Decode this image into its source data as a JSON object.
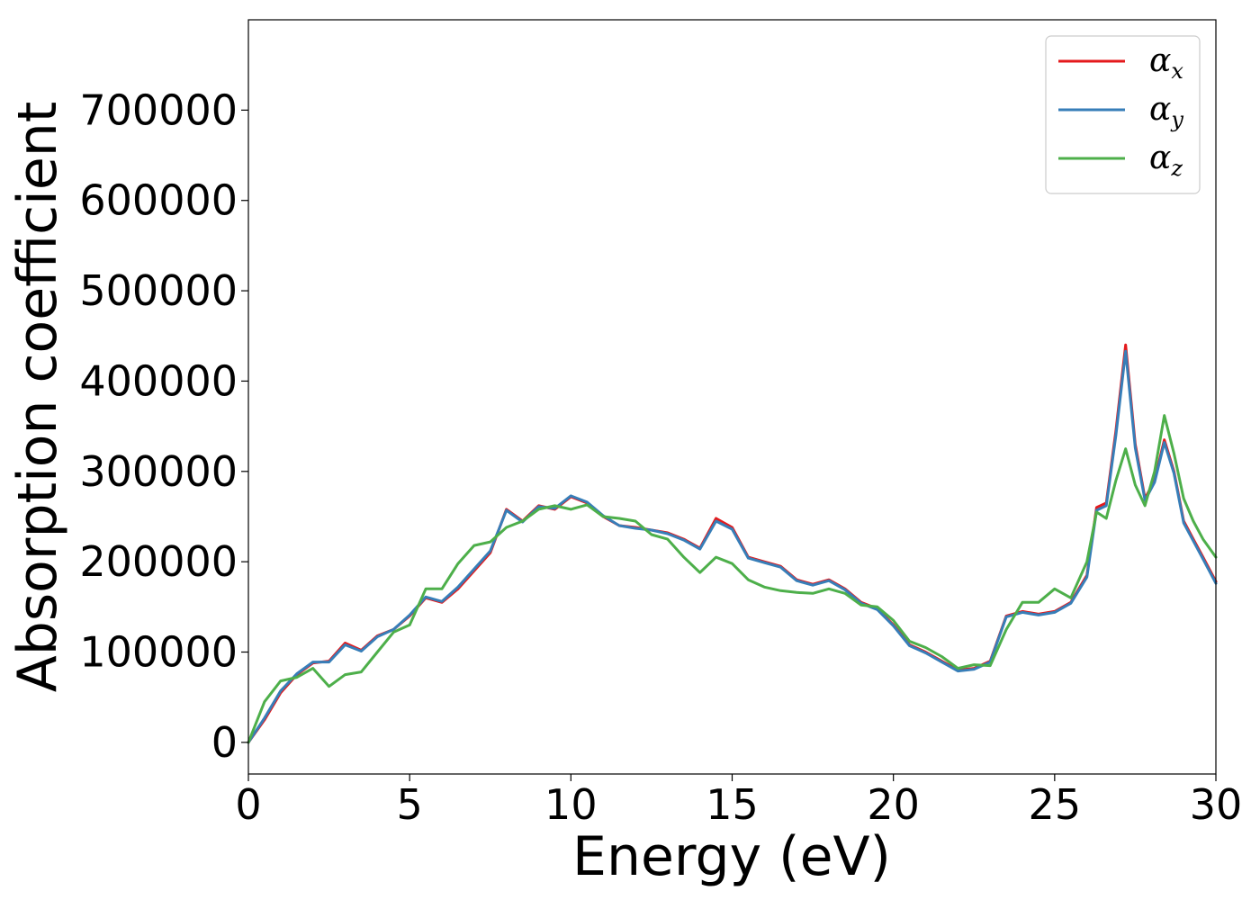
{
  "chart_data": {
    "type": "line",
    "title": "",
    "xlabel": "Energy (eV)",
    "ylabel": "Absorption coefficient",
    "xlim": [
      0,
      30
    ],
    "ylim": [
      -35000,
      800000
    ],
    "xticks": [
      0,
      5,
      10,
      15,
      20,
      25,
      30
    ],
    "xtick_labels": [
      "0",
      "5",
      "10",
      "15",
      "20",
      "25",
      "30"
    ],
    "yticks": [
      0,
      100000,
      200000,
      300000,
      400000,
      500000,
      600000,
      700000
    ],
    "ytick_labels": [
      "0",
      "100000",
      "200000",
      "300000",
      "400000",
      "500000",
      "600000",
      "700000"
    ],
    "grid": false,
    "legend_position": "top-right",
    "series": [
      {
        "name": "αx",
        "symbol": "α",
        "subscript": "x",
        "color": "#e41a1c",
        "x": [
          0,
          0.5,
          1.0,
          1.5,
          2.0,
          2.5,
          3.0,
          3.5,
          4.0,
          4.5,
          5.0,
          5.5,
          6.0,
          6.5,
          7.0,
          7.5,
          8.0,
          8.5,
          9.0,
          9.5,
          10.0,
          10.5,
          11.0,
          11.5,
          12.0,
          12.5,
          13.0,
          13.5,
          14.0,
          14.5,
          15.0,
          15.5,
          16.0,
          16.5,
          17.0,
          17.5,
          18.0,
          18.5,
          19.0,
          19.5,
          20.0,
          20.5,
          21.0,
          21.5,
          22.0,
          22.5,
          23.0,
          23.5,
          24.0,
          24.5,
          25.0,
          25.5,
          26.0,
          26.3,
          26.6,
          26.9,
          27.2,
          27.5,
          27.8,
          28.1,
          28.4,
          28.7,
          29.0,
          29.3,
          29.6,
          30.0
        ],
        "y": [
          0,
          25000,
          55000,
          75000,
          88000,
          90000,
          110000,
          102000,
          118000,
          125000,
          140000,
          160000,
          155000,
          170000,
          190000,
          210000,
          258000,
          245000,
          262000,
          258000,
          272000,
          265000,
          250000,
          240000,
          238000,
          235000,
          232000,
          225000,
          215000,
          248000,
          238000,
          205000,
          200000,
          195000,
          180000,
          175000,
          180000,
          170000,
          155000,
          148000,
          130000,
          108000,
          100000,
          90000,
          80000,
          82000,
          90000,
          140000,
          145000,
          142000,
          145000,
          155000,
          185000,
          260000,
          265000,
          345000,
          440000,
          330000,
          270000,
          290000,
          335000,
          300000,
          245000,
          225000,
          205000,
          178000
        ]
      },
      {
        "name": "αy",
        "symbol": "α",
        "subscript": "y",
        "color": "#377eb8",
        "x": [
          0,
          0.5,
          1.0,
          1.5,
          2.0,
          2.5,
          3.0,
          3.5,
          4.0,
          4.5,
          5.0,
          5.5,
          6.0,
          6.5,
          7.0,
          7.5,
          8.0,
          8.5,
          9.0,
          9.5,
          10.0,
          10.5,
          11.0,
          11.5,
          12.0,
          12.5,
          13.0,
          13.5,
          14.0,
          14.5,
          15.0,
          15.5,
          16.0,
          16.5,
          17.0,
          17.5,
          18.0,
          18.5,
          19.0,
          19.5,
          20.0,
          20.5,
          21.0,
          21.5,
          22.0,
          22.5,
          23.0,
          23.5,
          24.0,
          24.5,
          25.0,
          25.5,
          26.0,
          26.3,
          26.6,
          26.9,
          27.2,
          27.5,
          27.8,
          28.1,
          28.4,
          28.7,
          29.0,
          29.3,
          29.6,
          30.0
        ],
        "y": [
          0,
          27000,
          57000,
          76000,
          89000,
          89000,
          108000,
          101000,
          117000,
          125000,
          141000,
          161000,
          156000,
          172000,
          192000,
          212000,
          257000,
          244000,
          261000,
          259000,
          273000,
          266000,
          251000,
          240000,
          237000,
          235000,
          231000,
          224000,
          214000,
          245000,
          236000,
          204000,
          199000,
          194000,
          179000,
          174000,
          179000,
          169000,
          154000,
          147000,
          129000,
          107000,
          99000,
          89000,
          79000,
          81000,
          89000,
          139000,
          144000,
          141000,
          144000,
          154000,
          183000,
          257000,
          262000,
          340000,
          433000,
          326000,
          268000,
          288000,
          332000,
          298000,
          243000,
          223000,
          203000,
          176000
        ]
      },
      {
        "name": "αz",
        "symbol": "α",
        "subscript": "z",
        "color": "#4daf4a",
        "x": [
          0,
          0.5,
          1.0,
          1.5,
          2.0,
          2.5,
          3.0,
          3.5,
          4.0,
          4.5,
          5.0,
          5.5,
          6.0,
          6.5,
          7.0,
          7.5,
          8.0,
          8.5,
          9.0,
          9.5,
          10.0,
          10.5,
          11.0,
          11.5,
          12.0,
          12.5,
          13.0,
          13.5,
          14.0,
          14.5,
          15.0,
          15.5,
          16.0,
          16.5,
          17.0,
          17.5,
          18.0,
          18.5,
          19.0,
          19.5,
          20.0,
          20.5,
          21.0,
          21.5,
          22.0,
          22.5,
          23.0,
          23.5,
          24.0,
          24.5,
          25.0,
          25.5,
          26.0,
          26.3,
          26.6,
          26.9,
          27.2,
          27.5,
          27.8,
          28.1,
          28.4,
          28.7,
          29.0,
          29.3,
          29.6,
          30.0
        ],
        "y": [
          0,
          45000,
          68000,
          72000,
          82000,
          62000,
          75000,
          78000,
          100000,
          122000,
          130000,
          170000,
          170000,
          198000,
          218000,
          222000,
          238000,
          245000,
          258000,
          262000,
          258000,
          263000,
          250000,
          248000,
          245000,
          230000,
          225000,
          205000,
          188000,
          205000,
          198000,
          180000,
          172000,
          168000,
          166000,
          165000,
          170000,
          165000,
          152000,
          150000,
          135000,
          112000,
          105000,
          95000,
          82000,
          86000,
          85000,
          125000,
          155000,
          155000,
          170000,
          160000,
          200000,
          255000,
          248000,
          290000,
          325000,
          285000,
          262000,
          300000,
          362000,
          320000,
          270000,
          245000,
          225000,
          205000
        ]
      }
    ]
  }
}
